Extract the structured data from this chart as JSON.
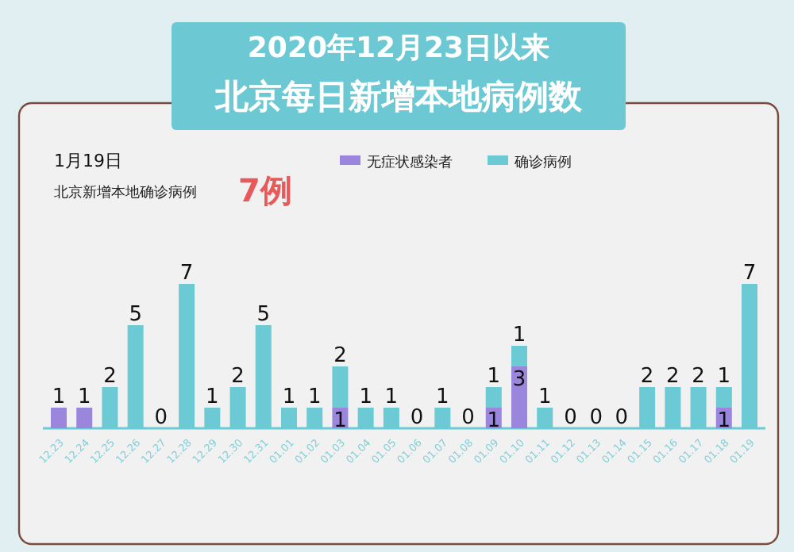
{
  "chart_data": {
    "type": "bar",
    "stacked": true,
    "title": "2020年12月23日以来",
    "subtitle": "北京每日新增本地病例数",
    "annotations": [
      "1月19日",
      "北京新增本地确诊病例",
      "7例"
    ],
    "categories": [
      "12.23",
      "12.24",
      "12.25",
      "12.26",
      "12.27",
      "12.28",
      "12.29",
      "12.30",
      "12.31",
      "01.01",
      "01.02",
      "01.03",
      "01.04",
      "01.05",
      "01.06",
      "01.07",
      "01.08",
      "01.09",
      "01.10",
      "01.11",
      "01.12",
      "01.13",
      "01.14",
      "01.15",
      "01.16",
      "01.17",
      "01.18",
      "01.19"
    ],
    "legend": "top",
    "series": [
      {
        "name": "无症状感染者",
        "color": "#9b86de",
        "values": [
          1,
          1,
          0,
          0,
          0,
          0,
          0,
          0,
          0,
          0,
          0,
          1,
          0,
          0,
          0,
          0,
          0,
          1,
          3,
          0,
          0,
          0,
          0,
          0,
          0,
          0,
          1,
          0
        ],
        "value_labels": [
          "1",
          "1",
          null,
          null,
          null,
          null,
          null,
          null,
          null,
          null,
          null,
          "1",
          null,
          null,
          null,
          null,
          null,
          "1",
          "3",
          null,
          null,
          null,
          null,
          null,
          null,
          null,
          "1",
          null
        ]
      },
      {
        "name": "确诊病例",
        "color": "#6ccad4",
        "values": [
          0,
          0,
          2,
          5,
          0,
          7,
          1,
          2,
          5,
          1,
          1,
          2,
          1,
          1,
          0,
          1,
          0,
          1,
          1,
          1,
          0,
          0,
          0,
          2,
          2,
          2,
          1,
          7
        ],
        "value_labels": [
          null,
          null,
          "2",
          "5",
          "0",
          "7",
          "1",
          "2",
          "5",
          "1",
          "1",
          "2",
          "1",
          "1",
          "0",
          "1",
          "0",
          "1",
          "1",
          "1",
          "0",
          "0",
          "0",
          "2",
          "2",
          "2",
          "1",
          "7"
        ]
      }
    ]
  }
}
